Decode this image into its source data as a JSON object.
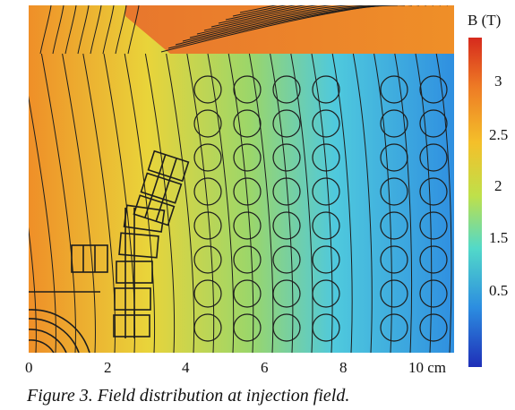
{
  "figure": {
    "type": "field-map",
    "colorbar": {
      "label": "B (T)",
      "ticks": [
        "3",
        "2.5",
        "2",
        "1.5",
        "0.5"
      ],
      "colors": [
        "#d62a1d",
        "#ee7b25",
        "#f4c02a",
        "#bfe04a",
        "#52d9c9",
        "#2c8de0",
        "#1f2fb8"
      ]
    },
    "x_axis": {
      "ticks": [
        "0",
        "2",
        "4",
        "6",
        "8",
        "10 cm"
      ]
    },
    "field_colors": {
      "orange": "#ef8f28",
      "yellow": "#e9d43a",
      "green": "#9bd66a",
      "cyan": "#4fc9dd",
      "blue": "#2f8fe0",
      "hot": "#e8772d",
      "lines": "#1d1d1d"
    },
    "caption": "Figure 3. Field distribution at injection field."
  }
}
